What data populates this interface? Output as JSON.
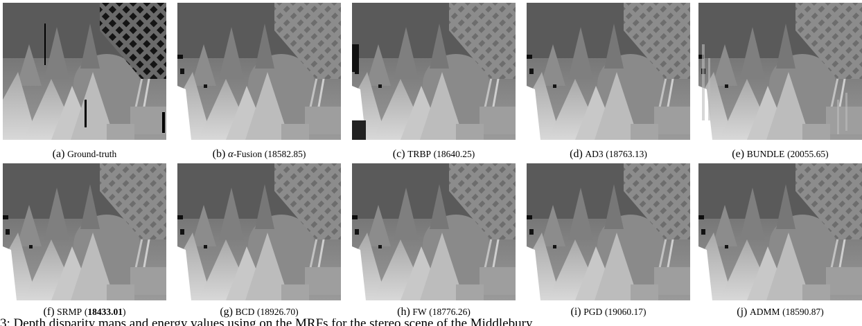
{
  "figure": {
    "panels": [
      {
        "letter": "(a)",
        "algo": "Ground-truth",
        "score": ""
      },
      {
        "letter": "(b)",
        "alpha": "α",
        "algo": "-Fusion",
        "score": "(18582.85)"
      },
      {
        "letter": "(c)",
        "algo": "TRBP",
        "score": "(18640.25)"
      },
      {
        "letter": "(d)",
        "algo": "AD3",
        "score": "(18763.13)"
      },
      {
        "letter": "(e)",
        "algo": "BUNDLE",
        "score": "(20055.65)"
      },
      {
        "letter": "(f)",
        "algo": "SRMP",
        "score_open": "(",
        "score_best": "18433.01",
        "score_close": ")"
      },
      {
        "letter": "(g)",
        "algo": "BCD",
        "score": "(18926.70)"
      },
      {
        "letter": "(h)",
        "algo": "FW",
        "score": "(18776.26)"
      },
      {
        "letter": "(i)",
        "algo": "PGD",
        "score": "(19060.17)"
      },
      {
        "letter": "(j)",
        "algo": "ADMM",
        "score": "(18590.87)"
      }
    ],
    "caption_text": "3: Depth disparity maps and energy values using on the MRFs for the stereo scene of the Middlebury"
  }
}
